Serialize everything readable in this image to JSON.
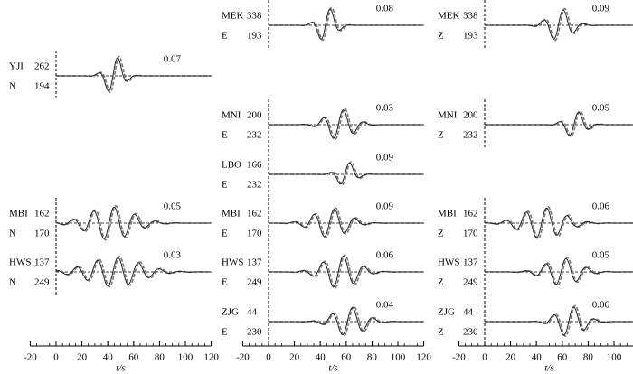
{
  "panels": [
    {
      "column": 0,
      "station": "YJI",
      "dist": 262,
      "comp": "N",
      "az": 194,
      "misfit": 0.07
    },
    {
      "column": 0,
      "station": "MBI",
      "dist": 162,
      "comp": "N",
      "az": 170,
      "misfit": 0.05
    },
    {
      "column": 0,
      "station": "HWS",
      "dist": 137,
      "comp": "N",
      "az": 249,
      "misfit": 0.03
    },
    {
      "column": 1,
      "station": "MEK",
      "dist": 338,
      "comp": "E",
      "az": 193,
      "misfit": 0.08
    },
    {
      "column": 1,
      "station": "MNI",
      "dist": 200,
      "comp": "E",
      "az": 232,
      "misfit": 0.03
    },
    {
      "column": 1,
      "station": "LBO",
      "dist": 166,
      "comp": "E",
      "az": 232,
      "misfit": 0.09
    },
    {
      "column": 1,
      "station": "MBI",
      "dist": 162,
      "comp": "E",
      "az": 170,
      "misfit": 0.09
    },
    {
      "column": 1,
      "station": "HWS",
      "dist": 137,
      "comp": "E",
      "az": 249,
      "misfit": 0.06
    },
    {
      "column": 1,
      "station": "ZJG",
      "dist": 44,
      "comp": "E",
      "az": 230,
      "misfit": 0.04
    },
    {
      "column": 2,
      "station": "MEK",
      "dist": 338,
      "comp": "Z",
      "az": 193,
      "misfit": 0.09
    },
    {
      "column": 2,
      "station": "MNI",
      "dist": 200,
      "comp": "Z",
      "az": 232,
      "misfit": 0.05
    },
    {
      "column": 2,
      "station": "MBI",
      "dist": 162,
      "comp": "Z",
      "az": 170,
      "misfit": 0.06
    },
    {
      "column": 2,
      "station": "HWS",
      "dist": 137,
      "comp": "Z",
      "az": 249,
      "misfit": 0.05
    },
    {
      "column": 2,
      "station": "ZJG",
      "dist": 44,
      "comp": "Z",
      "az": 230,
      "misfit": 0.06
    }
  ],
  "axis": {
    "ticks": [
      -20,
      0,
      20,
      40,
      60,
      80,
      100,
      120
    ],
    "label": "t/s"
  }
}
